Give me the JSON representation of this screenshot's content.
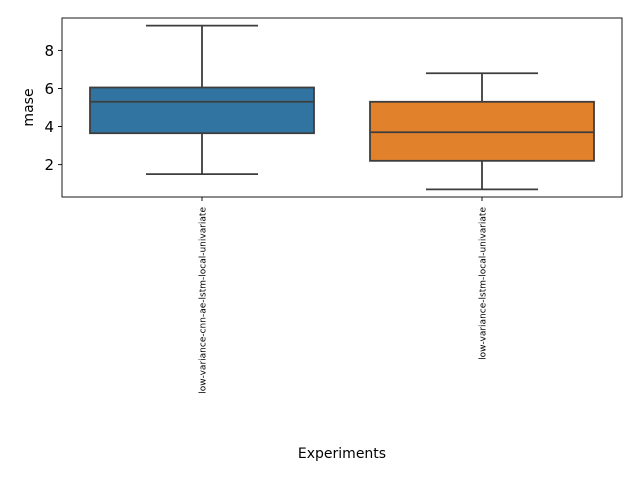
{
  "chart_data": {
    "type": "box",
    "xlabel": "Experiments",
    "ylabel": "mase",
    "ylim": [
      0.3,
      9.7
    ],
    "yticks": [
      2,
      4,
      6,
      8
    ],
    "grid": false,
    "legend": "none",
    "categories": [
      "low-variance-cnn-ae-lstm-local-univariate",
      "low-variance-lstm-local-univariate"
    ],
    "boxes": [
      {
        "category": "low-variance-cnn-ae-lstm-local-univariate",
        "whisker_low": 1.5,
        "q1": 3.65,
        "median": 5.3,
        "q3": 6.05,
        "whisker_high": 9.3,
        "color": "#3274a1"
      },
      {
        "category": "low-variance-lstm-local-univariate",
        "whisker_low": 0.7,
        "q1": 2.2,
        "median": 3.7,
        "q3": 5.3,
        "whisker_high": 6.8,
        "color": "#e1812c"
      }
    ],
    "line_color": "#3d3d3d"
  }
}
